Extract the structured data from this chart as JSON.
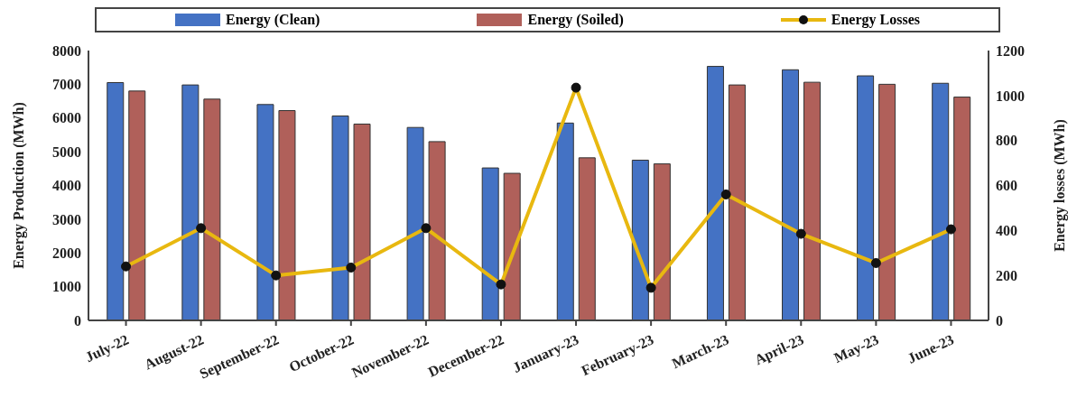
{
  "chart_data": {
    "type": "bar",
    "categories": [
      "July-22",
      "August-22",
      "September-22",
      "October-22",
      "November-22",
      "December-22",
      "January-23",
      "February-23",
      "March-23",
      "April-23",
      "May-23",
      "June-23"
    ],
    "series": [
      {
        "name": "Energy (Clean)",
        "color": "#4472c4",
        "values": [
          7050,
          6980,
          6400,
          6060,
          5720,
          4520,
          5850,
          4750,
          7530,
          7430,
          7250,
          7030
        ]
      },
      {
        "name": "Energy (Soiled)",
        "color": "#b0605a",
        "values": [
          6800,
          6560,
          6220,
          5820,
          5300,
          4360,
          4820,
          4640,
          6980,
          7060,
          7000,
          6620
        ]
      },
      {
        "name": "Energy Losses",
        "type": "line",
        "axis": "y2",
        "color": "#e8b810",
        "marker": "circle",
        "values": [
          240,
          410,
          200,
          235,
          410,
          160,
          1035,
          145,
          560,
          385,
          255,
          405
        ]
      }
    ],
    "ylabel": "Energy Production (MWh)",
    "y2label": "Energy losses (MWh)",
    "ylim": [
      0,
      8000
    ],
    "yticks": [
      0,
      1000,
      2000,
      3000,
      4000,
      5000,
      6000,
      7000,
      8000
    ],
    "y2lim": [
      0,
      1200
    ],
    "y2ticks": [
      0,
      200,
      400,
      600,
      800,
      1000,
      1200
    ],
    "grid": false,
    "legend": "top"
  }
}
